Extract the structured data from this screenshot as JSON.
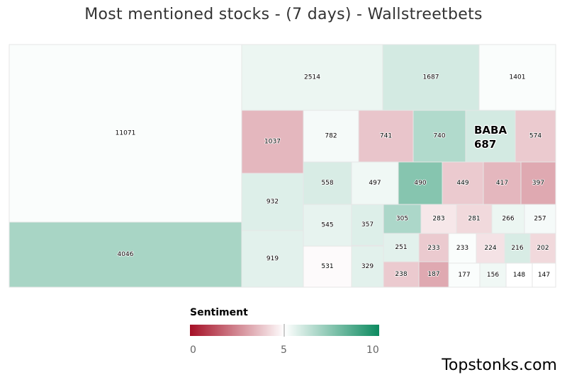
{
  "chart_data": {
    "type": "heatmap",
    "title": "Most mentioned stocks - (7 days) - Wallstreetbets",
    "cells": [
      {
        "label": "11071",
        "sentiment": 5.1
      },
      {
        "label": "4046",
        "sentiment": 6.8
      },
      {
        "label": "2514",
        "sentiment": 5.4
      },
      {
        "label": "1687",
        "sentiment": 5.9
      },
      {
        "label": "1401",
        "sentiment": 5.1
      },
      {
        "label": "1037",
        "sentiment": 3.5
      },
      {
        "label": "782",
        "sentiment": 5.2
      },
      {
        "label": "741",
        "sentiment": 3.8
      },
      {
        "label": "740",
        "sentiment": 6.6
      },
      {
        "label": "BABA 687",
        "sentiment": 5.9
      },
      {
        "label": "574",
        "sentiment": 3.9
      },
      {
        "label": "932",
        "sentiment": 5.7
      },
      {
        "label": "919",
        "sentiment": 5.6
      },
      {
        "label": "558",
        "sentiment": 5.8
      },
      {
        "label": "497",
        "sentiment": 5.3
      },
      {
        "label": "490",
        "sentiment": 7.5
      },
      {
        "label": "449",
        "sentiment": 3.9
      },
      {
        "label": "417",
        "sentiment": 3.5
      },
      {
        "label": "397",
        "sentiment": 3.2
      },
      {
        "label": "545",
        "sentiment": 5.5
      },
      {
        "label": "357",
        "sentiment": 5.7
      },
      {
        "label": "305",
        "sentiment": 6.7
      },
      {
        "label": "283",
        "sentiment": 4.5
      },
      {
        "label": "281",
        "sentiment": 4.2
      },
      {
        "label": "266",
        "sentiment": 5.4
      },
      {
        "label": "257",
        "sentiment": 5.2
      },
      {
        "label": "531",
        "sentiment": 4.9
      },
      {
        "label": "329",
        "sentiment": 5.6
      },
      {
        "label": "251",
        "sentiment": 5.6
      },
      {
        "label": "233",
        "sentiment": 3.9
      },
      {
        "label": "233",
        "sentiment": 5.1
      },
      {
        "label": "224",
        "sentiment": 4.4
      },
      {
        "label": "216",
        "sentiment": 5.8
      },
      {
        "label": "202",
        "sentiment": 4.2
      },
      {
        "label": "238",
        "sentiment": 3.9
      },
      {
        "label": "187",
        "sentiment": 3.2
      },
      {
        "label": "177",
        "sentiment": 5.1
      },
      {
        "label": "156",
        "sentiment": 5.3
      },
      {
        "label": "148",
        "sentiment": 5.0
      },
      {
        "label": "147",
        "sentiment": 5.0
      }
    ],
    "legend": {
      "title": "Sentiment",
      "min": 0,
      "mid": 5,
      "max": 10,
      "tick_labels": [
        "0",
        "5",
        "10"
      ],
      "colors": {
        "low": "#a50f25",
        "mid": "#ffffff",
        "high": "#0c8a5f"
      }
    }
  },
  "brand": "Topstonks.com"
}
